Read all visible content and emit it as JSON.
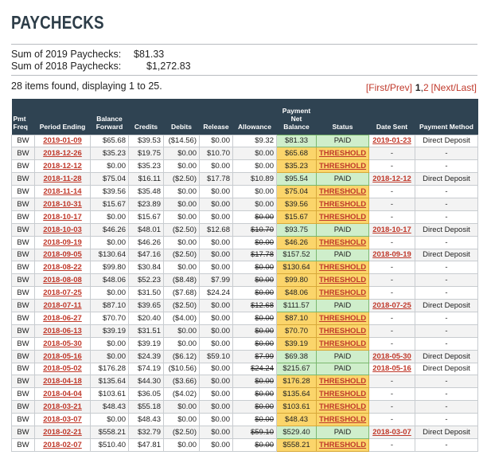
{
  "title": "PAYCHECKS",
  "sums": [
    {
      "label": "Sum of 2019 Paychecks:",
      "value": "$81.33"
    },
    {
      "label": "Sum of 2018 Paychecks:",
      "value": "$1,272.83"
    }
  ],
  "found_text": "28 items found, displaying 1 to 25.",
  "pager": {
    "first_prev": "[First/Prev]",
    "current": "1",
    "sep": ",",
    "page2": "2",
    "next_last": "[Next/Last]"
  },
  "columns": {
    "pmt_freq": "Pmt Freq",
    "period_ending": "Period Ending",
    "balance_forward": "Balance Forward",
    "credits": "Credits",
    "debits": "Debits",
    "release": "Release",
    "allowance": "Allowance",
    "payment_net_balance": "Payment Net Balance",
    "status": "Status",
    "date_sent": "Date Sent",
    "payment_method": "Payment Method"
  },
  "rows": [
    {
      "freq": "BW",
      "period": "2019-01-09",
      "bal": "$65.68",
      "credits": "$39.53",
      "debits": "($14.56)",
      "release": "$0.00",
      "allow": "$9.32",
      "allow_strike": false,
      "net": "$81.33",
      "status": "PAID",
      "sent": "2019-01-23",
      "method": "Direct Deposit"
    },
    {
      "freq": "BW",
      "period": "2018-12-26",
      "bal": "$35.23",
      "credits": "$19.75",
      "debits": "$0.00",
      "release": "$10.70",
      "allow": "$0.00",
      "allow_strike": false,
      "net": "$65.68",
      "status": "THRESHOLD",
      "sent": "-",
      "method": "-"
    },
    {
      "freq": "BW",
      "period": "2018-12-12",
      "bal": "$0.00",
      "credits": "$35.23",
      "debits": "$0.00",
      "release": "$0.00",
      "allow": "$0.00",
      "allow_strike": false,
      "net": "$35.23",
      "status": "THRESHOLD",
      "sent": "-",
      "method": "-"
    },
    {
      "freq": "BW",
      "period": "2018-11-28",
      "bal": "$75.04",
      "credits": "$16.11",
      "debits": "($2.50)",
      "release": "$17.78",
      "allow": "$10.89",
      "allow_strike": false,
      "net": "$95.54",
      "status": "PAID",
      "sent": "2018-12-12",
      "method": "Direct Deposit"
    },
    {
      "freq": "BW",
      "period": "2018-11-14",
      "bal": "$39.56",
      "credits": "$35.48",
      "debits": "$0.00",
      "release": "$0.00",
      "allow": "$0.00",
      "allow_strike": false,
      "net": "$75.04",
      "status": "THRESHOLD",
      "sent": "-",
      "method": "-"
    },
    {
      "freq": "BW",
      "period": "2018-10-31",
      "bal": "$15.67",
      "credits": "$23.89",
      "debits": "$0.00",
      "release": "$0.00",
      "allow": "$0.00",
      "allow_strike": false,
      "net": "$39.56",
      "status": "THRESHOLD",
      "sent": "-",
      "method": "-"
    },
    {
      "freq": "BW",
      "period": "2018-10-17",
      "bal": "$0.00",
      "credits": "$15.67",
      "debits": "$0.00",
      "release": "$0.00",
      "allow": "$0.00",
      "allow_strike": true,
      "net": "$15.67",
      "status": "THRESHOLD",
      "sent": "-",
      "method": "-"
    },
    {
      "freq": "BW",
      "period": "2018-10-03",
      "bal": "$46.26",
      "credits": "$48.01",
      "debits": "($2.50)",
      "release": "$12.68",
      "allow": "$10.70",
      "allow_strike": true,
      "net": "$93.75",
      "status": "PAID",
      "sent": "2018-10-17",
      "method": "Direct Deposit"
    },
    {
      "freq": "BW",
      "period": "2018-09-19",
      "bal": "$0.00",
      "credits": "$46.26",
      "debits": "$0.00",
      "release": "$0.00",
      "allow": "$0.00",
      "allow_strike": true,
      "net": "$46.26",
      "status": "THRESHOLD",
      "sent": "-",
      "method": "-"
    },
    {
      "freq": "BW",
      "period": "2018-09-05",
      "bal": "$130.64",
      "credits": "$47.16",
      "debits": "($2.50)",
      "release": "$0.00",
      "allow": "$17.78",
      "allow_strike": true,
      "net": "$157.52",
      "status": "PAID",
      "sent": "2018-09-19",
      "method": "Direct Deposit"
    },
    {
      "freq": "BW",
      "period": "2018-08-22",
      "bal": "$99.80",
      "credits": "$30.84",
      "debits": "$0.00",
      "release": "$0.00",
      "allow": "$0.00",
      "allow_strike": true,
      "net": "$130.64",
      "status": "THRESHOLD",
      "sent": "-",
      "method": "-"
    },
    {
      "freq": "BW",
      "period": "2018-08-08",
      "bal": "$48.06",
      "credits": "$52.23",
      "debits": "($8.48)",
      "release": "$7.99",
      "allow": "$0.00",
      "allow_strike": true,
      "net": "$99.80",
      "status": "THRESHOLD",
      "sent": "-",
      "method": "-"
    },
    {
      "freq": "BW",
      "period": "2018-07-25",
      "bal": "$0.00",
      "credits": "$31.50",
      "debits": "($7.68)",
      "release": "$24.24",
      "allow": "$0.00",
      "allow_strike": true,
      "net": "$48.06",
      "status": "THRESHOLD",
      "sent": "-",
      "method": "-"
    },
    {
      "freq": "BW",
      "period": "2018-07-11",
      "bal": "$87.10",
      "credits": "$39.65",
      "debits": "($2.50)",
      "release": "$0.00",
      "allow": "$12.68",
      "allow_strike": true,
      "net": "$111.57",
      "status": "PAID",
      "sent": "2018-07-25",
      "method": "Direct Deposit"
    },
    {
      "freq": "BW",
      "period": "2018-06-27",
      "bal": "$70.70",
      "credits": "$20.40",
      "debits": "($4.00)",
      "release": "$0.00",
      "allow": "$0.00",
      "allow_strike": true,
      "net": "$87.10",
      "status": "THRESHOLD",
      "sent": "-",
      "method": "-"
    },
    {
      "freq": "BW",
      "period": "2018-06-13",
      "bal": "$39.19",
      "credits": "$31.51",
      "debits": "$0.00",
      "release": "$0.00",
      "allow": "$0.00",
      "allow_strike": true,
      "net": "$70.70",
      "status": "THRESHOLD",
      "sent": "-",
      "method": "-"
    },
    {
      "freq": "BW",
      "period": "2018-05-30",
      "bal": "$0.00",
      "credits": "$39.19",
      "debits": "$0.00",
      "release": "$0.00",
      "allow": "$0.00",
      "allow_strike": true,
      "net": "$39.19",
      "status": "THRESHOLD",
      "sent": "-",
      "method": "-"
    },
    {
      "freq": "BW",
      "period": "2018-05-16",
      "bal": "$0.00",
      "credits": "$24.39",
      "debits": "($6.12)",
      "release": "$59.10",
      "allow": "$7.99",
      "allow_strike": true,
      "net": "$69.38",
      "status": "PAID",
      "sent": "2018-05-30",
      "method": "Direct Deposit"
    },
    {
      "freq": "BW",
      "period": "2018-05-02",
      "bal": "$176.28",
      "credits": "$74.19",
      "debits": "($10.56)",
      "release": "$0.00",
      "allow": "$24.24",
      "allow_strike": true,
      "net": "$215.67",
      "status": "PAID",
      "sent": "2018-05-16",
      "method": "Direct Deposit"
    },
    {
      "freq": "BW",
      "period": "2018-04-18",
      "bal": "$135.64",
      "credits": "$44.30",
      "debits": "($3.66)",
      "release": "$0.00",
      "allow": "$0.00",
      "allow_strike": true,
      "net": "$176.28",
      "status": "THRESHOLD",
      "sent": "-",
      "method": "-"
    },
    {
      "freq": "BW",
      "period": "2018-04-04",
      "bal": "$103.61",
      "credits": "$36.05",
      "debits": "($4.02)",
      "release": "$0.00",
      "allow": "$0.00",
      "allow_strike": true,
      "net": "$135.64",
      "status": "THRESHOLD",
      "sent": "-",
      "method": "-"
    },
    {
      "freq": "BW",
      "period": "2018-03-21",
      "bal": "$48.43",
      "credits": "$55.18",
      "debits": "$0.00",
      "release": "$0.00",
      "allow": "$0.00",
      "allow_strike": true,
      "net": "$103.61",
      "status": "THRESHOLD",
      "sent": "-",
      "method": "-"
    },
    {
      "freq": "BW",
      "period": "2018-03-07",
      "bal": "$0.00",
      "credits": "$48.43",
      "debits": "$0.00",
      "release": "$0.00",
      "allow": "$0.00",
      "allow_strike": true,
      "net": "$48.43",
      "status": "THRESHOLD",
      "sent": "-",
      "method": "-"
    },
    {
      "freq": "BW",
      "period": "2018-02-21",
      "bal": "$558.21",
      "credits": "$32.79",
      "debits": "($2.50)",
      "release": "$0.00",
      "allow": "$59.10",
      "allow_strike": true,
      "net": "$529.40",
      "status": "PAID",
      "sent": "2018-03-07",
      "method": "Direct Deposit"
    },
    {
      "freq": "BW",
      "period": "2018-02-07",
      "bal": "$510.40",
      "credits": "$47.81",
      "debits": "$0.00",
      "release": "$0.00",
      "allow": "$0.00",
      "allow_strike": true,
      "net": "$558.21",
      "status": "THRESHOLD",
      "sent": "-",
      "method": "-"
    }
  ],
  "colors": {
    "header_bg": "#2f4352",
    "link_red": "#c0392b",
    "paid_green": "#cfeecb",
    "threshold_yellow": "#fbd56b"
  }
}
